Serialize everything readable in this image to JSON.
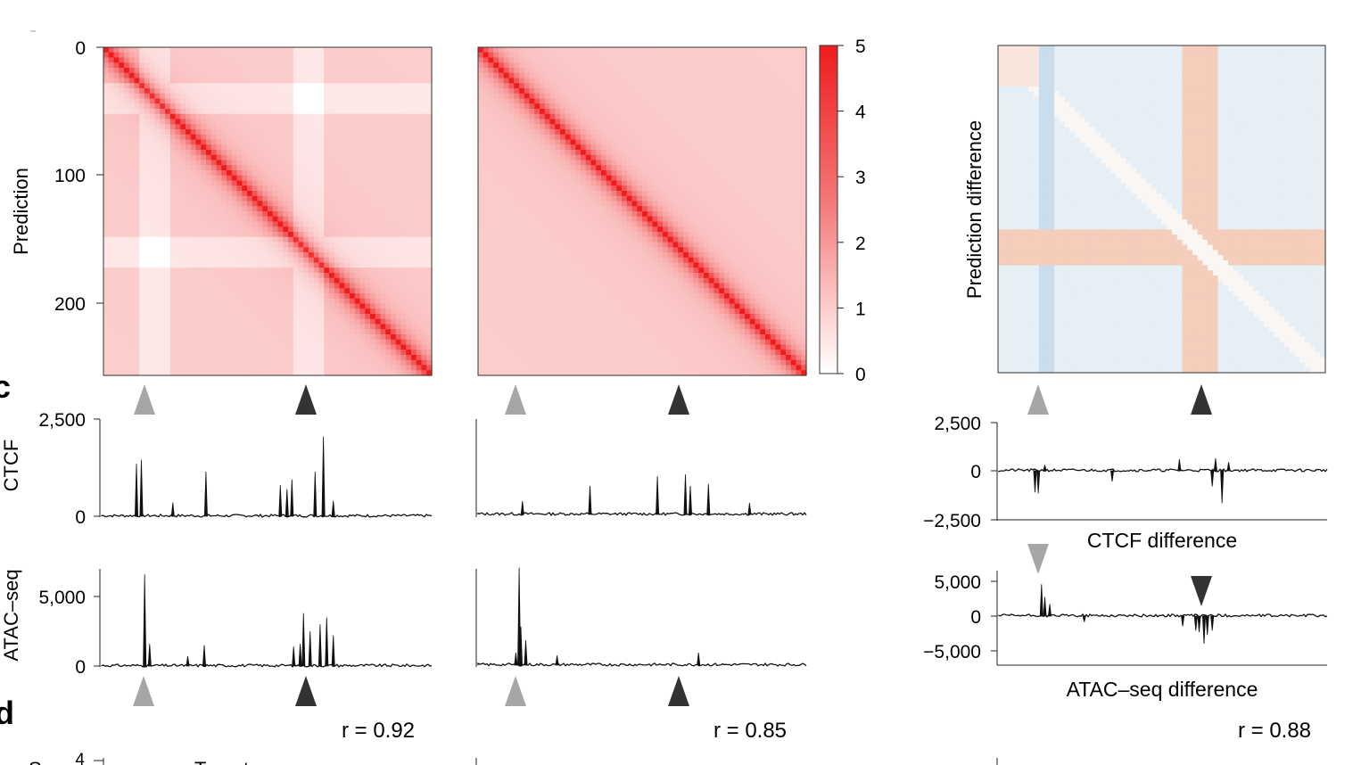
{
  "colors": {
    "heat_max": "#ee1c1c",
    "heat_min": "#ffffff",
    "diff_pos": "#f0a080",
    "diff_neg": "#8ab8e0",
    "tri_light": "#a6a6a6",
    "tri_dark": "#333333",
    "axis": "#222222"
  },
  "panel_labels": {
    "c": "c",
    "d": "d"
  },
  "chart_data": [
    {
      "id": "heatmap-left",
      "type": "heatmap",
      "ylabel": "Prediction",
      "yticks": [
        "0",
        "100",
        "200"
      ],
      "ytick_values": [
        0,
        100,
        200
      ],
      "range": [
        0,
        256
      ],
      "strong_stripes": [
        40,
        160
      ]
    },
    {
      "id": "heatmap-middle",
      "type": "heatmap",
      "range": [
        0,
        256
      ],
      "strong_stripes": []
    },
    {
      "id": "colorbar",
      "type": "heatmap",
      "ticks": [
        "5",
        "4",
        "3",
        "2",
        "1",
        "0"
      ],
      "tick_values": [
        5,
        4,
        3,
        2,
        1,
        0
      ],
      "range": [
        0,
        5
      ]
    },
    {
      "id": "heatmap-difference",
      "type": "heatmap",
      "ylabel": "Prediction difference",
      "range": [
        0,
        256
      ]
    },
    {
      "id": "ctcf-left",
      "type": "area",
      "ylabel": "CTCF",
      "yticks": [
        "2,500",
        "0"
      ],
      "ylim": [
        0,
        2500
      ],
      "x": [
        0.105,
        0.12,
        0.215,
        0.315,
        0.54,
        0.56,
        0.575,
        0.645,
        0.67,
        0.7
      ],
      "values": [
        1350,
        1450,
        350,
        1150,
        800,
        700,
        950,
        1150,
        2050,
        400
      ]
    },
    {
      "id": "ctcf-middle",
      "type": "area",
      "ylim": [
        0,
        2500
      ],
      "x": [
        0.135,
        0.34,
        0.545,
        0.63,
        0.645,
        0.7,
        0.825
      ],
      "values": [
        350,
        750,
        1000,
        1050,
        750,
        800,
        300
      ]
    },
    {
      "id": "ctcf-difference",
      "type": "area",
      "yticks": [
        "2,500",
        "0",
        "−2,500"
      ],
      "ylim": [
        -2500,
        2500
      ],
      "xlabel": "CTCF difference",
      "x": [
        0.11,
        0.12,
        0.14,
        0.345,
        0.55,
        0.65,
        0.66,
        0.68,
        0.7
      ],
      "values": [
        -1100,
        -1150,
        300,
        -550,
        600,
        -800,
        650,
        -1650,
        450
      ]
    },
    {
      "id": "atac-left",
      "type": "area",
      "ylabel": "ATAC–seq",
      "yticks": [
        "5,000",
        "0"
      ],
      "ylim": [
        0,
        7000
      ],
      "x": [
        0.13,
        0.145,
        0.26,
        0.31,
        0.58,
        0.6,
        0.61,
        0.63,
        0.66,
        0.68,
        0.7
      ],
      "values": [
        6600,
        1600,
        700,
        1500,
        1400,
        1600,
        3800,
        2500,
        3000,
        3500,
        2200
      ]
    },
    {
      "id": "atac-middle",
      "type": "area",
      "ylim": [
        0,
        7000
      ],
      "x": [
        0.115,
        0.125,
        0.13,
        0.145,
        0.24,
        0.67
      ],
      "values": [
        900,
        7100,
        2800,
        1800,
        700,
        900
      ]
    },
    {
      "id": "atac-difference",
      "type": "area",
      "yticks": [
        "5,000",
        "0",
        "−5,000"
      ],
      "ylim": [
        -6000,
        6000
      ],
      "xlabel": "ATAC–seq difference",
      "x": [
        0.13,
        0.14,
        0.155,
        0.26,
        0.56,
        0.6,
        0.61,
        0.625,
        0.635,
        0.65
      ],
      "values": [
        4200,
        2500,
        1600,
        -800,
        -1400,
        -2000,
        -2200,
        -3800,
        -2600,
        -2000
      ]
    }
  ],
  "correlations": {
    "left": "r = 0.92",
    "middle": "r = 0.85",
    "right": "r = 0.88"
  },
  "bottom_panel": {
    "ytick": "4",
    "label_fragment": "Target"
  }
}
